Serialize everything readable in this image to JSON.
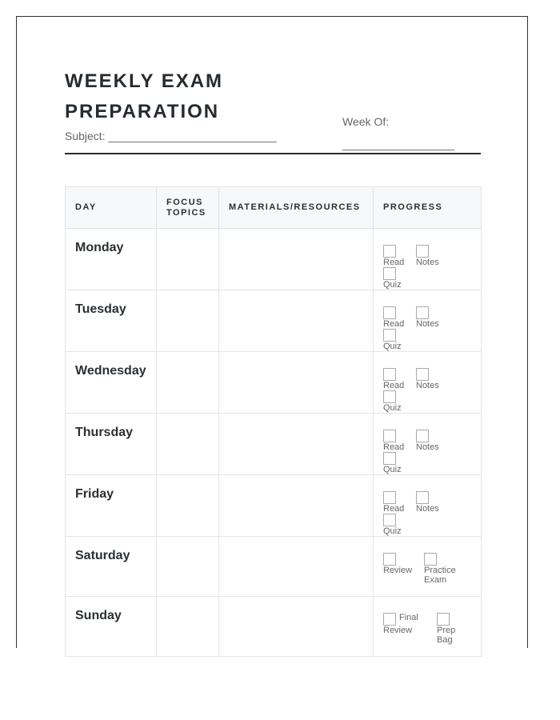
{
  "title": [
    "WEEKLY EXAM",
    "PREPARATION"
  ],
  "subject_label": "Subject: ___________________________",
  "week_label": "Week Of:",
  "week_line": "__________________",
  "table": {
    "headers": [
      "DAY",
      "FOCUS TOPICS",
      "MATERIALS/RESOURCES",
      "PROGRESS"
    ],
    "rows": [
      {
        "day": "Monday",
        "progress": [
          "Read",
          "Notes",
          "Quiz"
        ]
      },
      {
        "day": "Tuesday",
        "progress": [
          "Read",
          "Notes",
          "Quiz"
        ]
      },
      {
        "day": "Wednesday",
        "progress": [
          "Read",
          "Notes",
          "Quiz"
        ]
      },
      {
        "day": "Thursday",
        "progress": [
          "Read",
          "Notes",
          "Quiz"
        ]
      },
      {
        "day": "Friday",
        "progress": [
          "Read",
          "Notes",
          "Quiz"
        ]
      },
      {
        "day": "Saturday",
        "progress": [
          "Review",
          "Practice Exam"
        ]
      },
      {
        "day": "Sunday",
        "progress": [
          "Final Review",
          "Prep Bag"
        ]
      }
    ]
  }
}
